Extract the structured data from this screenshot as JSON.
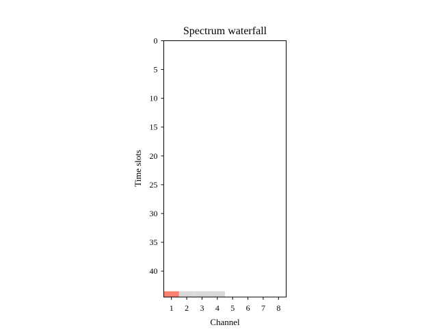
{
  "chart_data": {
    "type": "heatmap",
    "title": "Spectrum waterfall",
    "xlabel": "Channel",
    "ylabel": "Time slots",
    "x_ticks": [
      "1",
      "2",
      "3",
      "4",
      "5",
      "6",
      "7",
      "8"
    ],
    "y_ticks": [
      "0",
      "5",
      "10",
      "15",
      "20",
      "25",
      "30",
      "35",
      "40"
    ],
    "channels": 8,
    "time_slots": 45,
    "y_axis_inverted": true,
    "grid": false,
    "colors": {
      "empty": "#ffffff",
      "occupied": "#fa8072",
      "sensed": "#d9d9d9"
    },
    "filled_cells": [
      {
        "time_slot": 44,
        "channel": 1,
        "state": "occupied"
      },
      {
        "time_slot": 44,
        "channel": 2,
        "state": "sensed"
      },
      {
        "time_slot": 44,
        "channel": 3,
        "state": "sensed"
      },
      {
        "time_slot": 44,
        "channel": 4,
        "state": "sensed"
      }
    ]
  }
}
